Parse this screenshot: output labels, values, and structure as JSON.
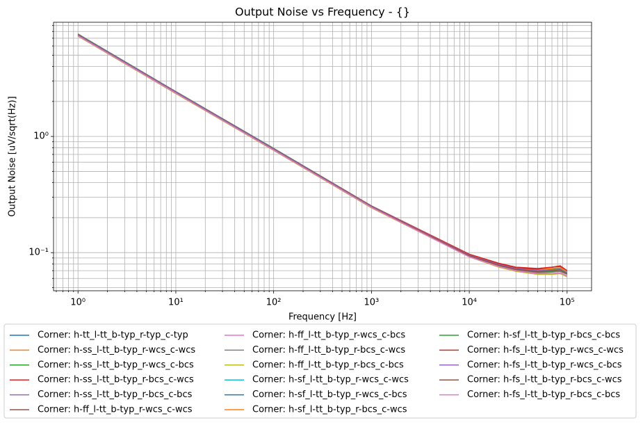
{
  "chart_data": {
    "type": "line",
    "title": "Output Noise vs Frequency - {}",
    "x_label": "Frequency [Hz]",
    "y_label": "Output Noise [uV/sqrt(Hz)]",
    "xscale": "log",
    "yscale": "log",
    "grid": true,
    "xlim": [
      0.562,
      177828
    ],
    "ylim": [
      0.047,
      9.6
    ],
    "xticks": [
      {
        "value": 1,
        "label": "10⁰"
      },
      {
        "value": 10,
        "label": "10¹"
      },
      {
        "value": 100,
        "label": "10²"
      },
      {
        "value": 1000,
        "label": "10³"
      },
      {
        "value": 10000,
        "label": "10⁴"
      },
      {
        "value": 100000,
        "label": "10⁵"
      }
    ],
    "yticks": [
      {
        "value": 0.1,
        "label": "10⁻¹"
      },
      {
        "value": 1,
        "label": "10⁰"
      }
    ],
    "xminor": [
      0.6,
      0.7,
      0.8,
      0.9,
      2,
      3,
      4,
      5,
      6,
      7,
      8,
      9,
      20,
      30,
      40,
      50,
      60,
      70,
      80,
      90,
      200,
      300,
      400,
      500,
      600,
      700,
      800,
      900,
      2000,
      3000,
      4000,
      5000,
      6000,
      7000,
      8000,
      9000,
      20000,
      30000,
      40000,
      50000,
      60000,
      70000,
      80000,
      90000
    ],
    "yminor": [
      0.05,
      0.06,
      0.07,
      0.08,
      0.09,
      0.2,
      0.3,
      0.4,
      0.5,
      0.6,
      0.7,
      0.8,
      0.9,
      2,
      3,
      4,
      5,
      6,
      7,
      8,
      9
    ],
    "x": [
      1,
      10,
      100,
      1000,
      10000,
      20000,
      30000,
      50000,
      70000,
      85000,
      100000
    ],
    "series": [
      {
        "name": "Corner: h-tt_l-tt_b-typ_r-typ_c-typ",
        "color": "#1f77b4",
        "values": [
          7.5,
          2.4,
          0.78,
          0.25,
          0.095,
          0.079,
          0.073,
          0.07,
          0.071,
          0.072,
          0.068
        ]
      },
      {
        "name": "Corner: h-ss_l-tt_b-typ_r-wcs_c-wcs",
        "color": "#ff7f0e",
        "values": [
          7.6,
          2.43,
          0.79,
          0.253,
          0.097,
          0.081,
          0.075,
          0.073,
          0.075,
          0.077,
          0.07
        ]
      },
      {
        "name": "Corner: h-ss_l-tt_b-typ_r-wcs_c-bcs",
        "color": "#2ca02c",
        "values": [
          7.6,
          2.43,
          0.79,
          0.252,
          0.096,
          0.08,
          0.074,
          0.071,
          0.072,
          0.073,
          0.068
        ]
      },
      {
        "name": "Corner: h-ss_l-tt_b-typ_r-bcs_c-wcs",
        "color": "#d62728",
        "values": [
          7.55,
          2.42,
          0.785,
          0.252,
          0.097,
          0.081,
          0.075,
          0.073,
          0.075,
          0.076,
          0.07
        ]
      },
      {
        "name": "Corner: h-ss_l-tt_b-typ_r-bcs_c-bcs",
        "color": "#9467bd",
        "values": [
          7.55,
          2.42,
          0.785,
          0.251,
          0.096,
          0.079,
          0.073,
          0.07,
          0.071,
          0.072,
          0.067
        ]
      },
      {
        "name": "Corner: h-ff_l-tt_b-typ_r-wcs_c-wcs",
        "color": "#8c564b",
        "values": [
          7.35,
          2.35,
          0.765,
          0.245,
          0.093,
          0.077,
          0.071,
          0.068,
          0.069,
          0.07,
          0.066
        ]
      },
      {
        "name": "Corner: h-ff_l-tt_b-typ_r-wcs_c-bcs",
        "color": "#e377c2",
        "values": [
          7.35,
          2.35,
          0.765,
          0.244,
          0.092,
          0.076,
          0.069,
          0.066,
          0.066,
          0.067,
          0.063
        ]
      },
      {
        "name": "Corner: h-ff_l-tt_b-typ_r-bcs_c-wcs",
        "color": "#7f7f7f",
        "values": [
          7.3,
          2.34,
          0.76,
          0.244,
          0.093,
          0.077,
          0.07,
          0.067,
          0.068,
          0.069,
          0.065
        ]
      },
      {
        "name": "Corner: h-ff_l-tt_b-typ_r-bcs_c-bcs",
        "color": "#bcbd22",
        "values": [
          7.3,
          2.34,
          0.76,
          0.243,
          0.092,
          0.075,
          0.069,
          0.065,
          0.065,
          0.066,
          0.062
        ]
      },
      {
        "name": "Corner: h-sf_l-tt_b-typ_r-wcs_c-wcs",
        "color": "#17becf",
        "values": [
          7.5,
          2.4,
          0.78,
          0.25,
          0.095,
          0.079,
          0.073,
          0.07,
          0.071,
          0.072,
          0.068
        ]
      },
      {
        "name": "Corner: h-sf_l-tt_b-typ_r-wcs_c-bcs",
        "color": "#1f77b4",
        "values": [
          7.5,
          2.4,
          0.78,
          0.25,
          0.095,
          0.078,
          0.072,
          0.069,
          0.07,
          0.07,
          0.066
        ]
      },
      {
        "name": "Corner: h-sf_l-tt_b-typ_r-bcs_c-wcs",
        "color": "#ff7f0e",
        "values": [
          7.45,
          2.38,
          0.775,
          0.248,
          0.095,
          0.079,
          0.073,
          0.071,
          0.073,
          0.074,
          0.069
        ]
      },
      {
        "name": "Corner: h-sf_l-tt_b-typ_r-bcs_c-bcs",
        "color": "#2ca02c",
        "values": [
          7.45,
          2.38,
          0.775,
          0.248,
          0.094,
          0.078,
          0.072,
          0.069,
          0.069,
          0.07,
          0.066
        ]
      },
      {
        "name": "Corner: h-fs_l-tt_b-typ_r-wcs_c-wcs",
        "color": "#d62728",
        "values": [
          7.45,
          2.39,
          0.775,
          0.249,
          0.096,
          0.08,
          0.074,
          0.072,
          0.075,
          0.077,
          0.07
        ]
      },
      {
        "name": "Corner: h-fs_l-tt_b-typ_r-wcs_c-bcs",
        "color": "#9467bd",
        "values": [
          7.45,
          2.39,
          0.775,
          0.249,
          0.095,
          0.079,
          0.073,
          0.07,
          0.071,
          0.072,
          0.067
        ]
      },
      {
        "name": "Corner: h-fs_l-tt_b-typ_r-bcs_c-wcs",
        "color": "#8c564b",
        "values": [
          7.4,
          2.37,
          0.77,
          0.247,
          0.094,
          0.078,
          0.072,
          0.069,
          0.07,
          0.071,
          0.066
        ]
      },
      {
        "name": "Corner: h-fs_l-tt_b-typ_r-bcs_c-bcs",
        "color": "#e377c2",
        "values": [
          7.35,
          2.36,
          0.765,
          0.245,
          0.092,
          0.076,
          0.07,
          0.066,
          0.066,
          0.067,
          0.063
        ]
      }
    ]
  }
}
